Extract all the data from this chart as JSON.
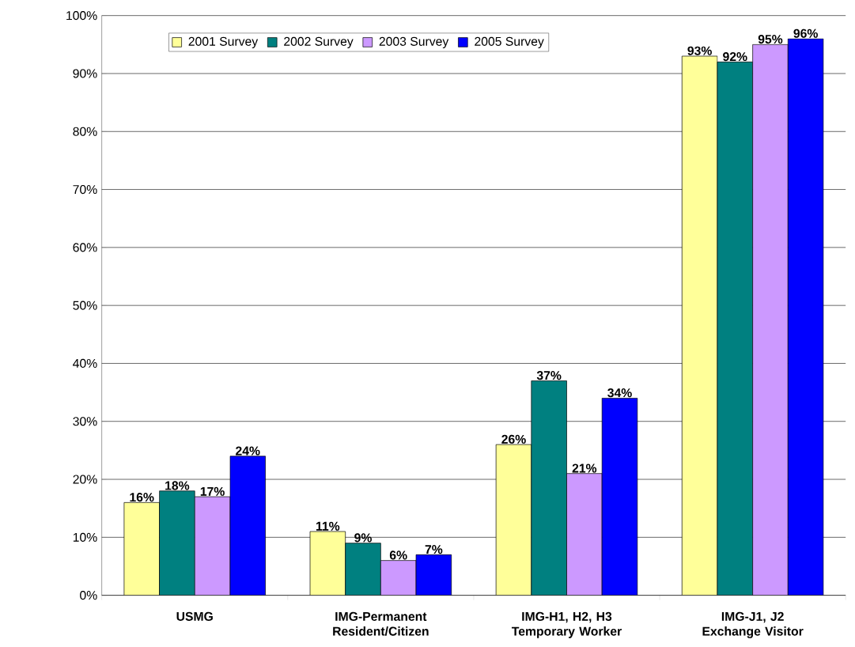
{
  "chart_data": {
    "type": "bar",
    "categories": [
      "USMG",
      "IMG-Permanent Resident/Citizen",
      "IMG-H1, H2, H3 Temporary Worker",
      "IMG-J1, J2 Exchange Visitor"
    ],
    "series": [
      {
        "name": "2001 Survey",
        "color": "#ffff99",
        "values": [
          16,
          11,
          26,
          93
        ],
        "value_labels": [
          "16%",
          "11%",
          "26%",
          "93%"
        ]
      },
      {
        "name": "2002 Survey",
        "color": "#008080",
        "values": [
          18,
          9,
          37,
          92
        ],
        "value_labels": [
          "18%",
          "9%",
          "37%",
          "92%"
        ]
      },
      {
        "name": "2003 Survey",
        "color": "#cc99ff",
        "values": [
          17,
          6,
          21,
          95
        ],
        "value_labels": [
          "17%",
          "6%",
          "21%",
          "95%"
        ]
      },
      {
        "name": "2005 Survey",
        "color": "#0000ff",
        "values": [
          24,
          7,
          34,
          96
        ],
        "value_labels": [
          "24%",
          "7%",
          "34%",
          "96%"
        ]
      }
    ],
    "ylim": [
      0,
      100
    ],
    "yticks": [
      {
        "value": 0,
        "label": "0%"
      },
      {
        "value": 10,
        "label": "10%"
      },
      {
        "value": 20,
        "label": "20%"
      },
      {
        "value": 30,
        "label": "30%"
      },
      {
        "value": 40,
        "label": "40%"
      },
      {
        "value": 50,
        "label": "50%"
      },
      {
        "value": 60,
        "label": "60%"
      },
      {
        "value": 70,
        "label": "70%"
      },
      {
        "value": 80,
        "label": "80%"
      },
      {
        "value": 90,
        "label": "90%"
      },
      {
        "value": 100,
        "label": "100%"
      }
    ],
    "grid": "y",
    "legend": "top left"
  }
}
